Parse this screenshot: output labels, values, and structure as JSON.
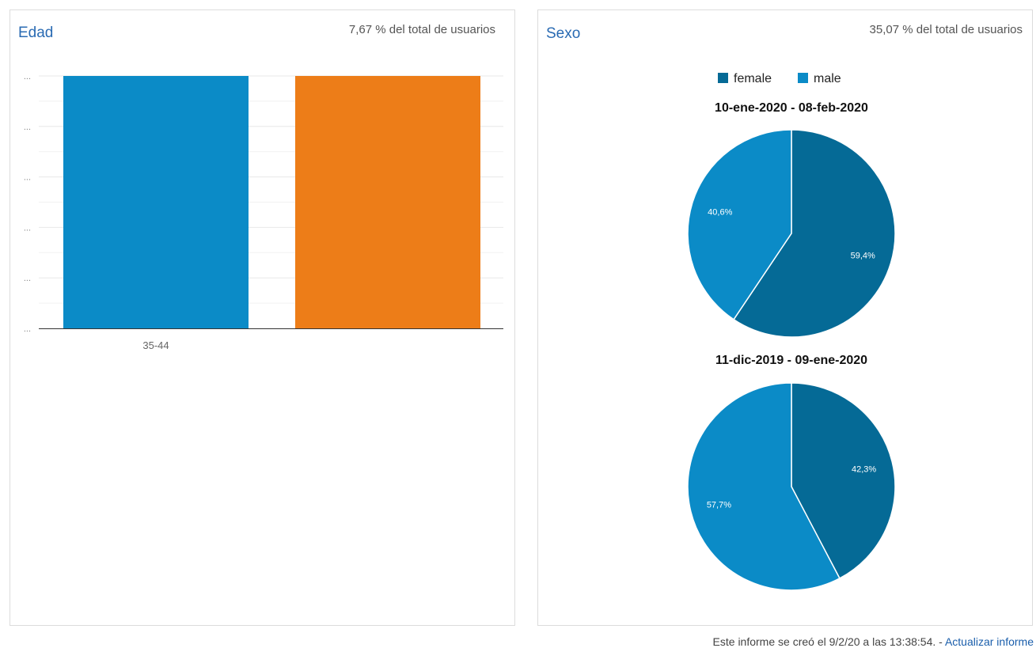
{
  "age_panel": {
    "title": "Edad",
    "subtitle": "7,67 % del total de usuarios"
  },
  "gender_panel": {
    "title": "Sexo",
    "subtitle": "35,07 % del total de usuarios"
  },
  "footer": {
    "text": "Este informe se creó el 9/2/20 a las 13:38:54. - ",
    "link": "Actualizar informe"
  },
  "colors": {
    "blue": "#0b8bc7",
    "orange": "#ed7d18",
    "female": "#056a96",
    "male": "#0b8bc7",
    "grid": "#e8e8e8"
  },
  "chart_data": [
    {
      "type": "bar",
      "title": "Edad",
      "categories": [
        "35-44"
      ],
      "series": [
        {
          "values": [
            100
          ]
        },
        {
          "values": [
            100
          ]
        }
      ],
      "ylim": [
        0,
        100
      ],
      "y_tick_labels": [
        "...",
        "...",
        "...",
        "...",
        "...",
        "..."
      ],
      "grid": true
    },
    {
      "type": "pie",
      "title": "10-ene-2020 - 08-feb-2020",
      "legend": [
        "female",
        "male"
      ],
      "legend_position": "top",
      "slices": [
        {
          "label": "female",
          "value": 59.4,
          "text": "59,4%"
        },
        {
          "label": "male",
          "value": 40.6,
          "text": "40,6%"
        }
      ]
    },
    {
      "type": "pie",
      "title": "11-dic-2019 - 09-ene-2020",
      "slices": [
        {
          "label": "female",
          "value": 42.3,
          "text": "42,3%"
        },
        {
          "label": "male",
          "value": 57.7,
          "text": "57,7%"
        }
      ]
    }
  ]
}
